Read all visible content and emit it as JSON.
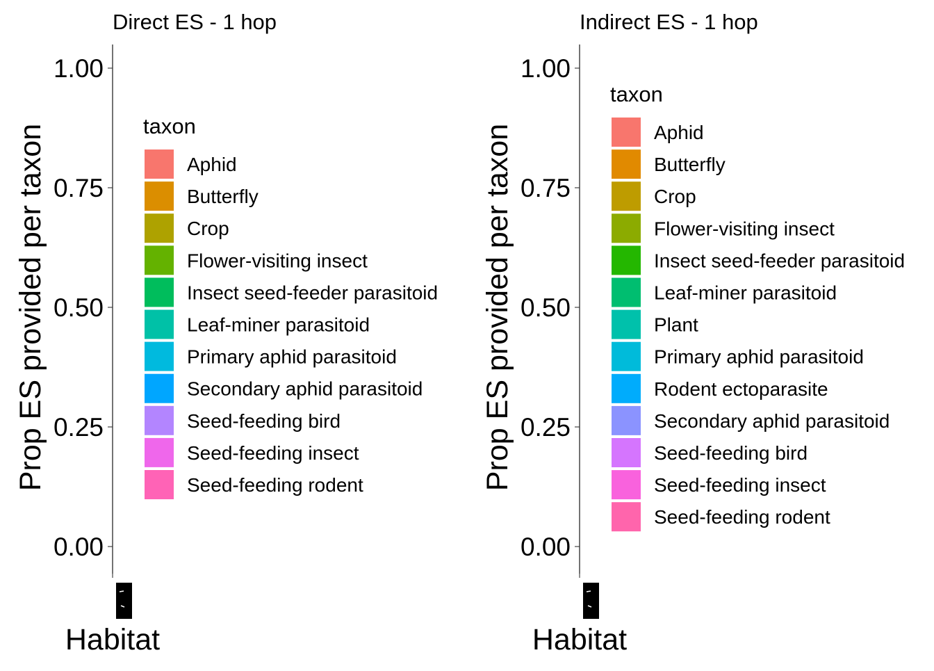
{
  "chart_data": [
    {
      "type": "bar",
      "title": "Direct ES - 1 hop",
      "xlabel": "Habitat",
      "ylabel": "Prop ES provided per taxon",
      "ylim": [
        0,
        1
      ],
      "yticks": [
        "0.00",
        "0.25",
        "0.50",
        "0.75",
        "1.00"
      ],
      "grid": false,
      "legend": {
        "title": "taxon",
        "placement": "inside-left",
        "entries": [
          {
            "label": "Aphid",
            "color": "#F8766D"
          },
          {
            "label": "Butterfly",
            "color": "#DB8E00"
          },
          {
            "label": "Crop",
            "color": "#AEA200"
          },
          {
            "label": "Flower-visiting insect",
            "color": "#64B200"
          },
          {
            "label": "Insect seed-feeder parasitoid",
            "color": "#00BD5C"
          },
          {
            "label": "Leaf-miner parasitoid",
            "color": "#00C1A7"
          },
          {
            "label": "Primary aphid parasitoid",
            "color": "#00BADE"
          },
          {
            "label": "Secondary aphid parasitoid",
            "color": "#00A6FF"
          },
          {
            "label": "Seed-feeding bird",
            "color": "#B385FF"
          },
          {
            "label": "Seed-feeding insect",
            "color": "#EF67EB"
          },
          {
            "label": "Seed-feeding rodent",
            "color": "#FF63B6"
          }
        ]
      },
      "categories": [],
      "series": []
    },
    {
      "type": "bar",
      "title": "Indirect ES - 1 hop",
      "xlabel": "Habitat",
      "ylabel": "Prop ES provided per taxon",
      "ylim": [
        0,
        1
      ],
      "yticks": [
        "0.00",
        "0.25",
        "0.50",
        "0.75",
        "1.00"
      ],
      "grid": false,
      "legend": {
        "title": "taxon",
        "placement": "inside-left",
        "entries": [
          {
            "label": "Aphid",
            "color": "#F8766D"
          },
          {
            "label": "Butterfly",
            "color": "#E18A00"
          },
          {
            "label": "Crop",
            "color": "#BE9C00"
          },
          {
            "label": "Flower-visiting insect",
            "color": "#8CAB00"
          },
          {
            "label": "Insect seed-feeder parasitoid",
            "color": "#24B700"
          },
          {
            "label": "Leaf-miner parasitoid",
            "color": "#00BE70"
          },
          {
            "label": "Plant",
            "color": "#00C1AB"
          },
          {
            "label": "Primary aphid parasitoid",
            "color": "#00BBDA"
          },
          {
            "label": "Rodent ectoparasite",
            "color": "#00ACFC"
          },
          {
            "label": "Secondary aphid parasitoid",
            "color": "#8B93FF"
          },
          {
            "label": "Seed-feeding bird",
            "color": "#D575FE"
          },
          {
            "label": "Seed-feeding insect",
            "color": "#F962DD"
          },
          {
            "label": "Seed-feeding rodent",
            "color": "#FF65AC"
          }
        ]
      },
      "categories": [],
      "series": []
    }
  ]
}
